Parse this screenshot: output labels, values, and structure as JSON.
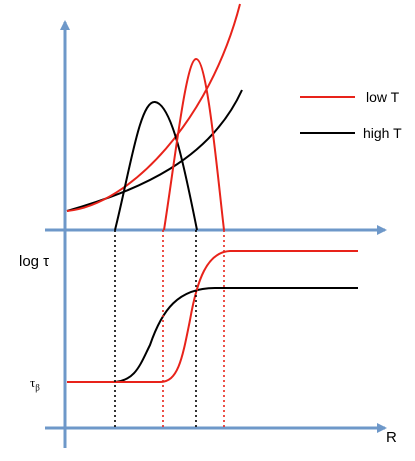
{
  "labels": {
    "y_axis_lower": "log τ",
    "tau_min": "τ",
    "tau_min_sub": "β",
    "x_axis": "R"
  },
  "legend": [
    {
      "name": "low T",
      "color": "#e8231a"
    },
    {
      "name": "high T",
      "color": "#000000"
    }
  ],
  "colors": {
    "axis": "#6e98c9",
    "low_T": "#e8231a",
    "high_T": "#000000"
  }
}
